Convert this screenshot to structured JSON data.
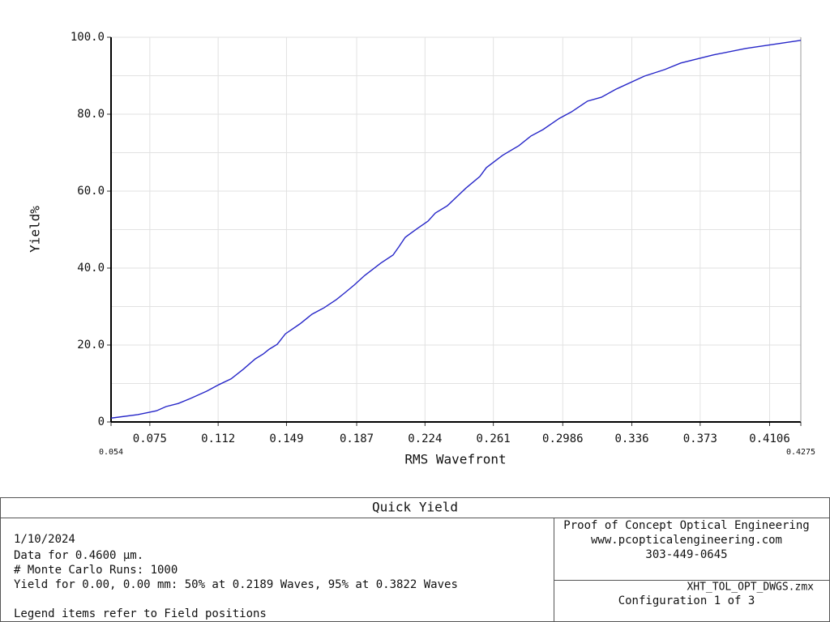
{
  "chart_data": {
    "type": "line",
    "x_label": "RMS Wavefront",
    "y_label": "Yield%",
    "x": [
      0.054,
      0.0685,
      0.0786,
      0.0838,
      0.0904,
      0.097,
      0.1058,
      0.1124,
      0.119,
      0.1256,
      0.1321,
      0.1365,
      0.1396,
      0.144,
      0.1484,
      0.1563,
      0.1628,
      0.1694,
      0.176,
      0.1804,
      0.1857,
      0.1914,
      0.2001,
      0.2067,
      0.2098,
      0.2133,
      0.2199,
      0.2256,
      0.2296,
      0.2361,
      0.2427,
      0.2462,
      0.2537,
      0.2572,
      0.266,
      0.2748,
      0.2813,
      0.2879,
      0.2967,
      0.3033,
      0.312,
      0.3195,
      0.3274,
      0.3428,
      0.3538,
      0.3625,
      0.3801,
      0.3977,
      0.4275
    ],
    "values": [
      1.0,
      1.9,
      2.9,
      4.0,
      4.8,
      6.1,
      8.0,
      9.7,
      11.2,
      13.7,
      16.4,
      17.7,
      18.9,
      20.2,
      22.9,
      25.5,
      28.0,
      29.7,
      31.8,
      33.5,
      35.6,
      38.1,
      41.3,
      43.4,
      45.5,
      48.0,
      50.3,
      52.2,
      54.3,
      56.2,
      59.2,
      60.8,
      63.8,
      66.1,
      69.3,
      71.8,
      74.3,
      76.0,
      78.9,
      80.6,
      83.4,
      84.4,
      86.5,
      89.9,
      91.6,
      93.3,
      95.4,
      97.1,
      99.2
    ],
    "color": "#2626c8",
    "xlim": [
      0.054,
      0.4275
    ],
    "xticks": [
      0.054,
      0.075,
      0.112,
      0.149,
      0.187,
      0.224,
      0.261,
      0.2986,
      0.336,
      0.373,
      0.4106,
      0.4275
    ],
    "ylim": [
      0,
      100
    ],
    "yticks": [
      0,
      {
        "value": 20,
        "label": "20.0"
      },
      {
        "value": 40,
        "label": "40.0"
      },
      {
        "value": 60,
        "label": "60.0"
      },
      {
        "value": 80,
        "label": "80.0"
      },
      {
        "value": 100,
        "label": "100.0"
      }
    ],
    "yminor": [
      10,
      30,
      50,
      70,
      90
    ],
    "grid": true
  },
  "info_box": {
    "title": "Quick Yield",
    "left_lines": [
      "1/10/2024",
      "Data for 0.4600 µm.",
      "# Monte Carlo Runs: 1000",
      "Yield for 0.00, 0.00 mm: 50% at 0.2189 Waves, 95% at 0.3822 Waves",
      "Legend items refer to Field positions"
    ],
    "company_lines": [
      "Proof of Concept Optical Engineering",
      "www.pcopticalengineering.com",
      "303-449-0645"
    ],
    "file_lines": [
      "XHT_TOL_OPT_DWGS.zmx",
      "Configuration 1 of 3"
    ]
  }
}
